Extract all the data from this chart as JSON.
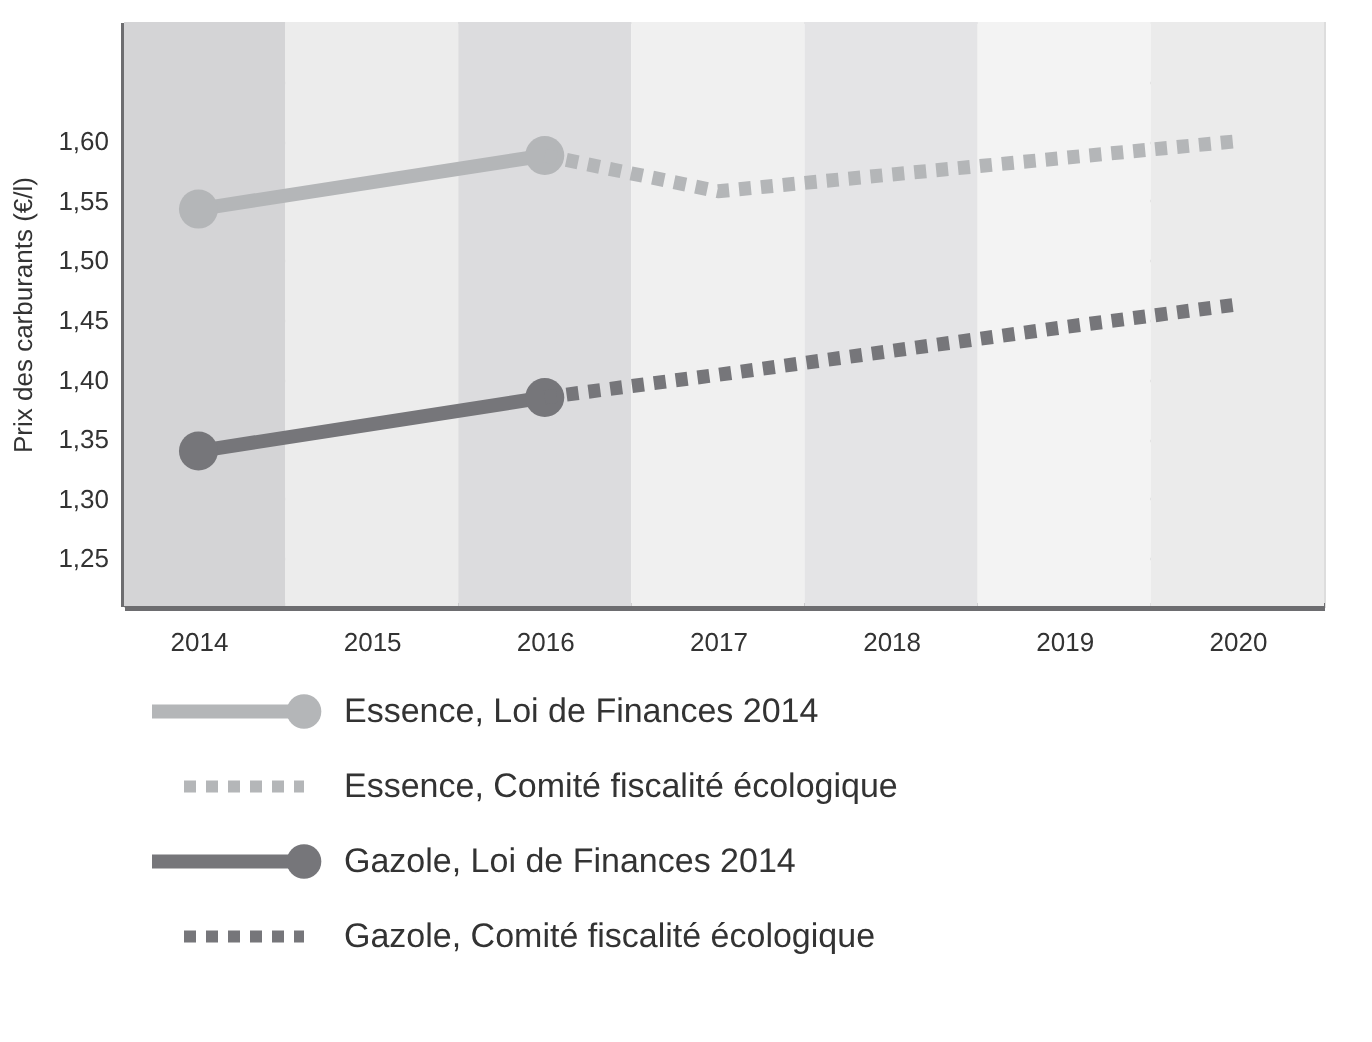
{
  "chart_data": {
    "type": "line",
    "ylabel": "Prix des carburants (€/l)",
    "xlim": [
      2013.57,
      2020.5
    ],
    "xticks": [
      2014,
      2015,
      2016,
      2017,
      2018,
      2019,
      2020
    ],
    "ylim": [
      1.21,
      1.7
    ],
    "yticks": [
      {
        "value": 1.25,
        "label": "1,25"
      },
      {
        "value": 1.3,
        "label": "1,30"
      },
      {
        "value": 1.35,
        "label": "1,35"
      },
      {
        "value": 1.4,
        "label": "1,40"
      },
      {
        "value": 1.45,
        "label": "1,45"
      },
      {
        "value": 1.5,
        "label": "1,50"
      },
      {
        "value": 1.55,
        "label": "1,55"
      },
      {
        "value": 1.6,
        "label": "1,60"
      },
      {
        "value": 1.65,
        "label": null
      }
    ],
    "grid": "y",
    "legend": "bottom",
    "bands": [
      {
        "axis": "x",
        "from": 2013.57,
        "to": 2014.5,
        "color": "#d4d4d6"
      },
      {
        "axis": "x",
        "from": 2014.5,
        "to": 2015.5,
        "color": "#ececec"
      },
      {
        "axis": "x",
        "from": 2015.5,
        "to": 2016.5,
        "color": "#dcdcde"
      },
      {
        "axis": "x",
        "from": 2016.5,
        "to": 2017.5,
        "color": "#f0f0f0"
      },
      {
        "axis": "x",
        "from": 2017.5,
        "to": 2018.5,
        "color": "#e4e4e6"
      },
      {
        "axis": "x",
        "from": 2018.5,
        "to": 2019.5,
        "color": "#f3f3f3"
      },
      {
        "axis": "x",
        "from": 2019.5,
        "to": 2020.5,
        "color": "#ebebeb"
      }
    ],
    "series": [
      {
        "name": "Essence, Loi de Finances 2014",
        "color": "#b4b6b8",
        "marker": "circle",
        "line_style": "solid",
        "x": [
          2014,
          2016
        ],
        "values": [
          1.543,
          1.588
        ]
      },
      {
        "name": "Essence, Comité fiscalité écologique",
        "color": "#b4b6b8",
        "marker": "none",
        "line_style": "dotted",
        "x": [
          2016,
          2017,
          2018,
          2019,
          2020
        ],
        "values": [
          1.588,
          1.558,
          1.572,
          1.586,
          1.6
        ]
      },
      {
        "name": "Gazole, Loi de Finances 2014",
        "color": "#76767a",
        "marker": "circle",
        "line_style": "solid",
        "x": [
          2014,
          2016
        ],
        "values": [
          1.34,
          1.385
        ]
      },
      {
        "name": "Gazole, Comité fiscalité écologique",
        "color": "#76767a",
        "marker": "none",
        "line_style": "dotted",
        "x": [
          2016,
          2017,
          2018,
          2019,
          2020
        ],
        "values": [
          1.385,
          1.404,
          1.424,
          1.444,
          1.463
        ]
      }
    ]
  }
}
